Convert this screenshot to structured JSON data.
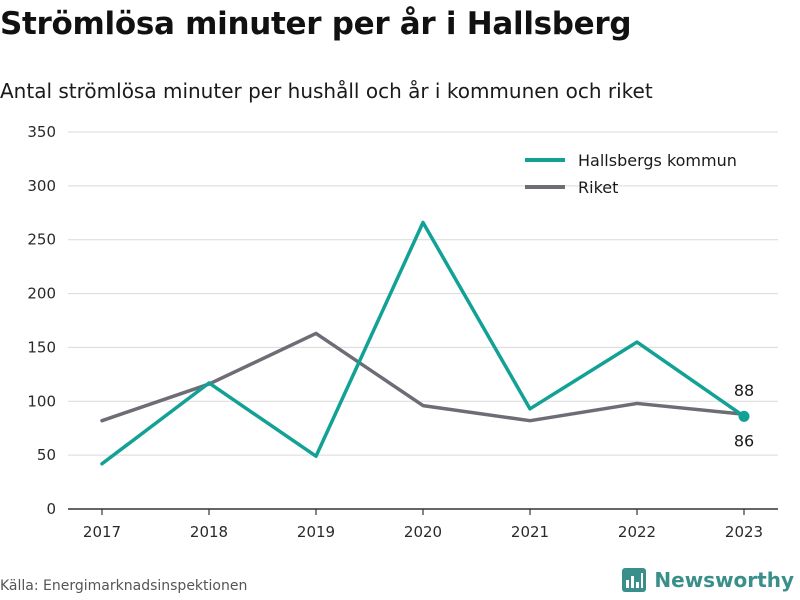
{
  "colors": {
    "hallsberg": "#12a195",
    "riket": "#6d6d76",
    "brand": "#3a8f8a"
  },
  "source": "Källa: Energimarknadsinspektionen",
  "brand": {
    "name": "Newsworthy",
    "icon": "bar-chart-icon"
  },
  "chart_data": {
    "type": "line",
    "title": "Strömlösa minuter per år i Hallsberg",
    "subtitle": "Antal strömlösa minuter per hushåll och år i kommunen och riket",
    "xlabel": "",
    "ylabel": "",
    "x": [
      "2017",
      "2018",
      "2019",
      "2020",
      "2021",
      "2022",
      "2023"
    ],
    "ylim": [
      0,
      350
    ],
    "yticks": [
      0,
      50,
      100,
      150,
      200,
      250,
      300,
      350
    ],
    "grid": true,
    "legend_position": "top-right",
    "series": [
      {
        "name": "Hallsbergs kommun",
        "values": [
          42,
          117,
          49,
          266,
          93,
          155,
          86
        ],
        "color_key": "hallsberg"
      },
      {
        "name": "Riket",
        "values": [
          82,
          116,
          163,
          96,
          82,
          98,
          88
        ],
        "color_key": "riket"
      }
    ],
    "annotations": [
      {
        "text": "88",
        "series": "Riket",
        "x": "2023"
      },
      {
        "text": "86",
        "series": "Hallsbergs kommun",
        "x": "2023"
      }
    ]
  }
}
